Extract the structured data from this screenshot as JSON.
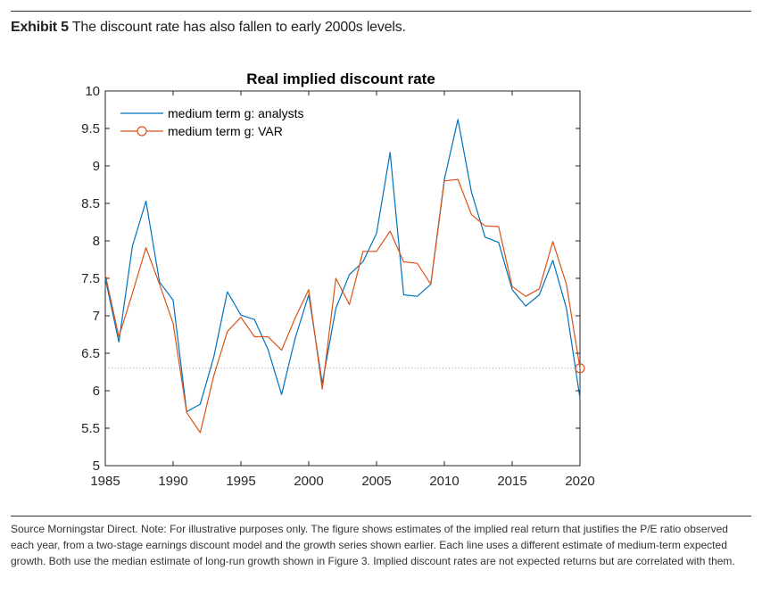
{
  "exhibit": {
    "label": "Exhibit 5",
    "title": "The discount rate has also fallen to early 2000s levels."
  },
  "source_note": "Source Morningstar Direct. Note: For illustrative purposes only. The figure shows estimates of the implied real return that justifies the P/E ratio observed each year, from a two-stage earnings discount model and the growth series shown earlier. Each line uses a different estimate of medium-term expected growth. Both use the median estimate of long-run growth shown in Figure 3. Implied discount rates are not expected returns but are correlated with them.",
  "chart_data": {
    "type": "line",
    "title": "Real implied discount rate",
    "xlabel": "",
    "ylabel": "",
    "xlim": [
      1985,
      2020
    ],
    "ylim": [
      5,
      10
    ],
    "xticks": [
      1985,
      1990,
      1995,
      2000,
      2005,
      2010,
      2015,
      2020
    ],
    "yticks": [
      5,
      5.5,
      6,
      6.5,
      7,
      7.5,
      8,
      8.5,
      9,
      9.5,
      10
    ],
    "legend_position": "top-left",
    "reference_line": {
      "y": 6.3,
      "style": "dotted",
      "color": "#999999"
    },
    "series": [
      {
        "name": "medium term g: analysts",
        "color": "#0072BD",
        "marker": "none",
        "x": [
          1985,
          1986,
          1987,
          1988,
          1989,
          1990,
          1991,
          1992,
          1993,
          1994,
          1995,
          1996,
          1997,
          1998,
          1999,
          2000,
          2001,
          2002,
          2003,
          2004,
          2005,
          2006,
          2007,
          2008,
          2009,
          2010,
          2011,
          2012,
          2013,
          2014,
          2015,
          2016,
          2017,
          2018,
          2019,
          2020
        ],
        "y": [
          7.5,
          6.65,
          7.93,
          8.53,
          7.45,
          7.21,
          5.72,
          5.82,
          6.45,
          7.32,
          7.01,
          6.95,
          6.55,
          5.95,
          6.7,
          7.28,
          6.1,
          7.1,
          7.55,
          7.72,
          8.1,
          9.18,
          7.28,
          7.26,
          7.42,
          8.82,
          9.62,
          8.65,
          8.05,
          7.98,
          7.35,
          7.13,
          7.28,
          7.74,
          7.1,
          5.9
        ]
      },
      {
        "name": "medium term g: VAR",
        "color": "#D95319",
        "marker": "circle-last",
        "x": [
          1985,
          1986,
          1987,
          1988,
          1989,
          1990,
          1991,
          1992,
          1993,
          1994,
          1995,
          1996,
          1997,
          1998,
          1999,
          2000,
          2001,
          2002,
          2003,
          2004,
          2005,
          2006,
          2007,
          2008,
          2009,
          2010,
          2011,
          2012,
          2013,
          2014,
          2015,
          2016,
          2017,
          2018,
          2019,
          2020
        ],
        "y": [
          7.55,
          6.72,
          7.3,
          7.91,
          7.42,
          6.9,
          5.71,
          5.44,
          6.2,
          6.79,
          6.98,
          6.72,
          6.72,
          6.54,
          6.97,
          7.35,
          6.02,
          7.5,
          7.15,
          7.86,
          7.86,
          8.13,
          7.72,
          7.7,
          7.42,
          8.8,
          8.82,
          8.35,
          8.2,
          8.19,
          7.39,
          7.26,
          7.36,
          7.99,
          7.42,
          6.3
        ]
      }
    ]
  }
}
